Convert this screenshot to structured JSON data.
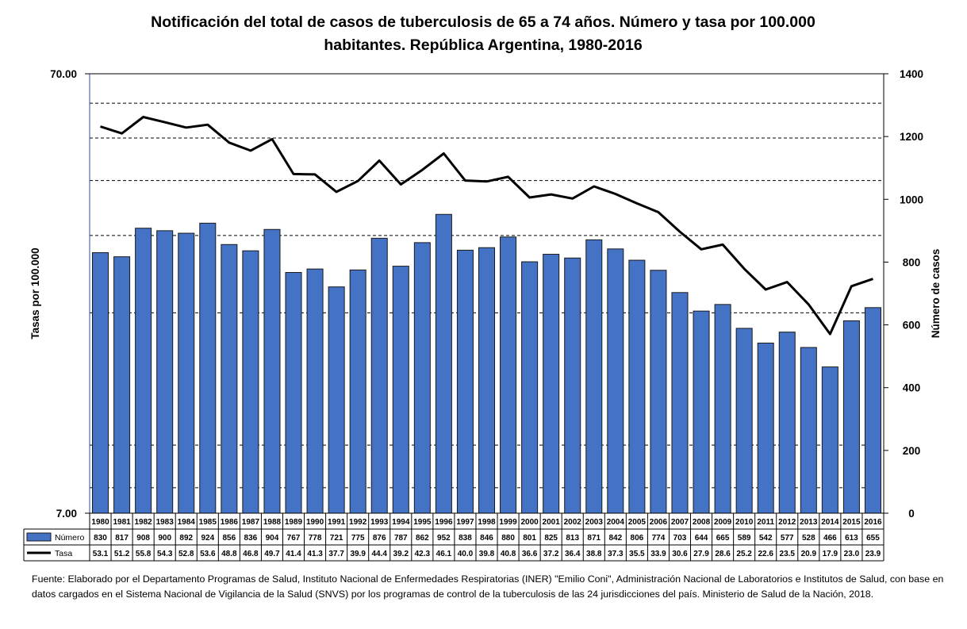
{
  "chart_data": {
    "type": "bar",
    "title_line1": "Notificación del total de casos de tuberculosis de 65 a 74 años. Número y tasa por 100.000",
    "title_line2": "habitantes. República Argentina, 1980-2016",
    "ylabel_left": "Tasas por 100.000",
    "ylabel_right": "Número de casos",
    "y_left": {
      "scale": "log",
      "range": [
        7,
        70
      ],
      "tick_labels": [
        "7.00",
        "70.00"
      ]
    },
    "y_right": {
      "scale": "linear",
      "range": [
        0,
        1400
      ],
      "ticks": [
        0,
        200,
        400,
        600,
        800,
        1000,
        1200,
        1400
      ]
    },
    "grid": "horizontal dashed (left log axis)",
    "categories": [
      "1980",
      "1981",
      "1982",
      "1983",
      "1984",
      "1985",
      "1986",
      "1987",
      "1988",
      "1989",
      "1990",
      "1991",
      "1992",
      "1993",
      "1994",
      "1995",
      "1996",
      "1997",
      "1998",
      "1999",
      "2000",
      "2001",
      "2002",
      "2003",
      "2004",
      "2005",
      "2006",
      "2007",
      "2008",
      "2009",
      "2010",
      "2011",
      "2012",
      "2013",
      "2014",
      "2015",
      "2016"
    ],
    "series": [
      {
        "name": "Número",
        "type": "bar",
        "axis": "right",
        "color": "#4472C4",
        "values": [
          830,
          817,
          908,
          900,
          892,
          924,
          856,
          836,
          904,
          767,
          778,
          721,
          775,
          876,
          787,
          862,
          952,
          838,
          846,
          880,
          801,
          825,
          813,
          871,
          842,
          806,
          774,
          703,
          644,
          665,
          589,
          542,
          577,
          528,
          466,
          613,
          655
        ]
      },
      {
        "name": "Tasa",
        "type": "line",
        "axis": "left",
        "color": "#000000",
        "values": [
          53.1,
          51.2,
          55.8,
          54.3,
          52.8,
          53.6,
          48.8,
          46.8,
          49.7,
          41.4,
          41.3,
          37.7,
          39.9,
          44.4,
          39.2,
          42.3,
          46.1,
          40.0,
          39.8,
          40.8,
          36.6,
          37.2,
          36.4,
          38.8,
          37.3,
          35.5,
          33.9,
          30.6,
          27.9,
          28.6,
          25.2,
          22.6,
          23.5,
          20.9,
          17.9,
          23.0,
          23.9
        ]
      }
    ],
    "table_formats": {
      "bar_values": "int",
      "line_values": "1dp"
    }
  },
  "source_note": "Fuente: Elaborado por el Departamento Programas de Salud, Instituto Nacional de Enfermedades Respiratorias (INER) \"Emilio Coni\", Administración Nacional de Laboratorios e Institutos de Salud, con base en datos cargados en el Sistema Nacional de Vigilancia de la Salud (SNVS) por los programas de control de la tuberculosis de las 24 jurisdicciones del país. Ministerio de Salud de la Nación, 2018."
}
